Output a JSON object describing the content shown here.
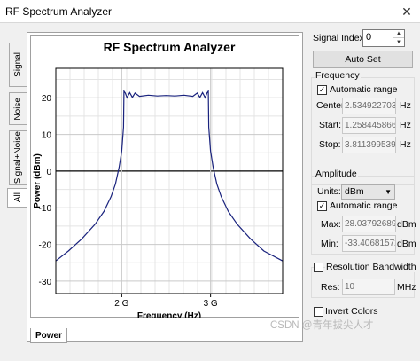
{
  "window": {
    "title": "RF Spectrum Analyzer",
    "close_glyph": "✕"
  },
  "tabs": [
    "Signal",
    "Noise",
    "Signal+Noise",
    "All"
  ],
  "bottom_tab": "Power",
  "chart_data": {
    "type": "line",
    "title": "RF Spectrum Analyzer",
    "xlabel": "Frequency (Hz)",
    "ylabel": "Power (dBm)",
    "xlim": [
      1.25844586695,
      3.81139953966
    ],
    "ylim": [
      -33.40681572,
      28.037926898
    ],
    "yticks": [
      -30,
      -20,
      -10,
      0,
      10,
      20
    ],
    "ytick_labels": [
      "-30",
      "-20",
      "-10",
      "0",
      "10",
      "20"
    ],
    "xticks": [
      2.0,
      3.0
    ],
    "xtick_labels": [
      "2 G",
      "3 G"
    ],
    "grid": true,
    "series": [
      {
        "color": "#1a237e",
        "x": [
          1.2584,
          1.4,
          1.55,
          1.7,
          1.8,
          1.88,
          1.93,
          1.97,
          2.0,
          2.02,
          2.025,
          2.04,
          2.06,
          2.09,
          2.12,
          2.15,
          2.2,
          2.3,
          2.4,
          2.5,
          2.6,
          2.7,
          2.8,
          2.85,
          2.88,
          2.91,
          2.94,
          2.96,
          2.975,
          2.98,
          3.0,
          3.03,
          3.07,
          3.12,
          3.2,
          3.3,
          3.45,
          3.6,
          3.8114
        ],
        "y": [
          -24.5,
          -21.8,
          -18.5,
          -14.5,
          -11.0,
          -7.0,
          -3.5,
          1.0,
          5.5,
          12.0,
          21.8,
          21.3,
          20.0,
          21.4,
          20.1,
          21.3,
          20.4,
          20.7,
          20.5,
          20.6,
          20.5,
          20.7,
          20.4,
          21.3,
          20.1,
          21.4,
          20.0,
          21.3,
          21.8,
          12.0,
          5.5,
          1.0,
          -3.5,
          -7.0,
          -11.0,
          -14.5,
          -18.5,
          -21.8,
          -24.5
        ]
      }
    ]
  },
  "panel": {
    "signal_index_label": "Signal Index:",
    "signal_index_value": "0",
    "auto_set_label": "Auto Set",
    "frequency": {
      "title": "Frequency",
      "auto_range_label": "Automatic range",
      "auto_range_checked": "✓",
      "center_label": "Center:",
      "center_value": "2.5349227033",
      "center_unit": "Hz",
      "start_label": "Start:",
      "start_value": "1.2584458669",
      "start_unit": "Hz",
      "stop_label": "Stop:",
      "stop_value": "3.8113995396",
      "stop_unit": "Hz"
    },
    "amplitude": {
      "title": "Amplitude",
      "units_label": "Units:",
      "units_value": "dBm",
      "auto_range_label": "Automatic range",
      "auto_range_checked": "✓",
      "max_label": "Max:",
      "max_value": "28.037926898",
      "max_unit": "dBm",
      "min_label": "Min:",
      "min_value": "-33.40681572",
      "min_unit": "dBm"
    },
    "resolution": {
      "label": "Resolution Bandwidth",
      "res_label": "Res:",
      "res_value": "10",
      "res_unit": "MHz"
    },
    "invert_colors_label": "Invert Colors"
  },
  "watermark": "CSDN @青年拔尖人才"
}
